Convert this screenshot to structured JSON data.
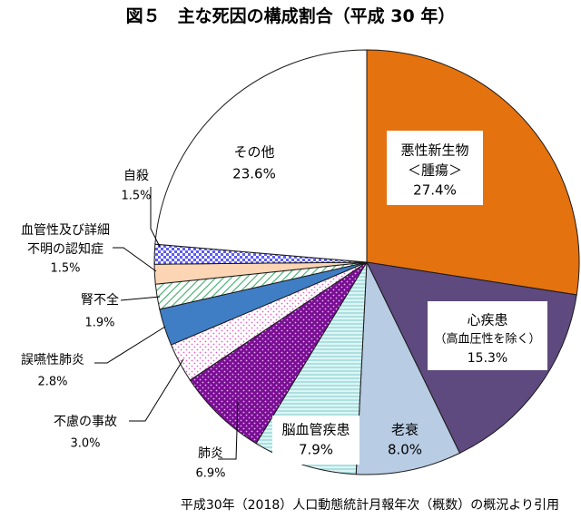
{
  "chart_data": {
    "type": "pie",
    "title": "図５　主な死因の構成割合（平成 30 年）",
    "source_note": "平成30年（2018）人口動態統計月報年次（概数）の概況より引用",
    "unit": "%",
    "start_angle_deg": 0,
    "direction": "clockwise",
    "slices": [
      {
        "key": "cancer",
        "lines": [
          "悪性新生物",
          "＜腫瘍＞"
        ],
        "value": 27.4,
        "value_label": "27.4%",
        "fill": "#e4720e",
        "pattern": "solid",
        "label_placement": "inside-boxed"
      },
      {
        "key": "heart",
        "lines": [
          "心疾患",
          "（高血圧性を除く）"
        ],
        "value": 15.3,
        "value_label": "15.3%",
        "fill": "#5e4a7e",
        "pattern": "solid",
        "label_placement": "inside-boxed"
      },
      {
        "key": "senility",
        "lines": [
          "老衰"
        ],
        "value": 8.0,
        "value_label": "8.0%",
        "fill": "#b8cce4",
        "pattern": "solid",
        "label_placement": "inside"
      },
      {
        "key": "cerebrovascular",
        "lines": [
          "脳血管疾患"
        ],
        "value": 7.9,
        "value_label": "7.9%",
        "fill": "#dcf4f4",
        "pattern": "horizontal-lines",
        "label_placement": "inside-boxed"
      },
      {
        "key": "pneumonia",
        "lines": [
          "肺炎"
        ],
        "value": 6.9,
        "value_label": "6.9%",
        "fill": "#7a0d94",
        "pattern": "dots-light",
        "label_placement": "outside"
      },
      {
        "key": "accident",
        "lines": [
          "不慮の事故"
        ],
        "value": 3.0,
        "value_label": "3.0%",
        "fill": "#ffffff",
        "pattern": "dots-pink",
        "label_placement": "outside"
      },
      {
        "key": "aspiration",
        "lines": [
          "誤嚥性肺炎"
        ],
        "value": 2.8,
        "value_label": "2.8%",
        "fill": "#3f7ec5",
        "pattern": "solid",
        "label_placement": "outside"
      },
      {
        "key": "renal",
        "lines": [
          "腎不全"
        ],
        "value": 1.9,
        "value_label": "1.9%",
        "fill": "#ffffff",
        "pattern": "diagonal-green",
        "label_placement": "outside"
      },
      {
        "key": "vascular",
        "lines": [
          "血管性及び詳細",
          "不明の認知症"
        ],
        "value": 1.5,
        "value_label": "1.5%",
        "fill": "#fcd5b5",
        "pattern": "solid",
        "label_placement": "outside"
      },
      {
        "key": "suicide",
        "lines": [
          "自殺"
        ],
        "value": 1.5,
        "value_label": "1.5%",
        "fill": "#ffffff",
        "pattern": "checker-blue",
        "label_placement": "outside"
      },
      {
        "key": "other",
        "lines": [
          "その他"
        ],
        "value": 23.6,
        "value_label": "23.6%",
        "fill": "#ffffff",
        "pattern": "solid",
        "label_placement": "inside"
      }
    ]
  }
}
